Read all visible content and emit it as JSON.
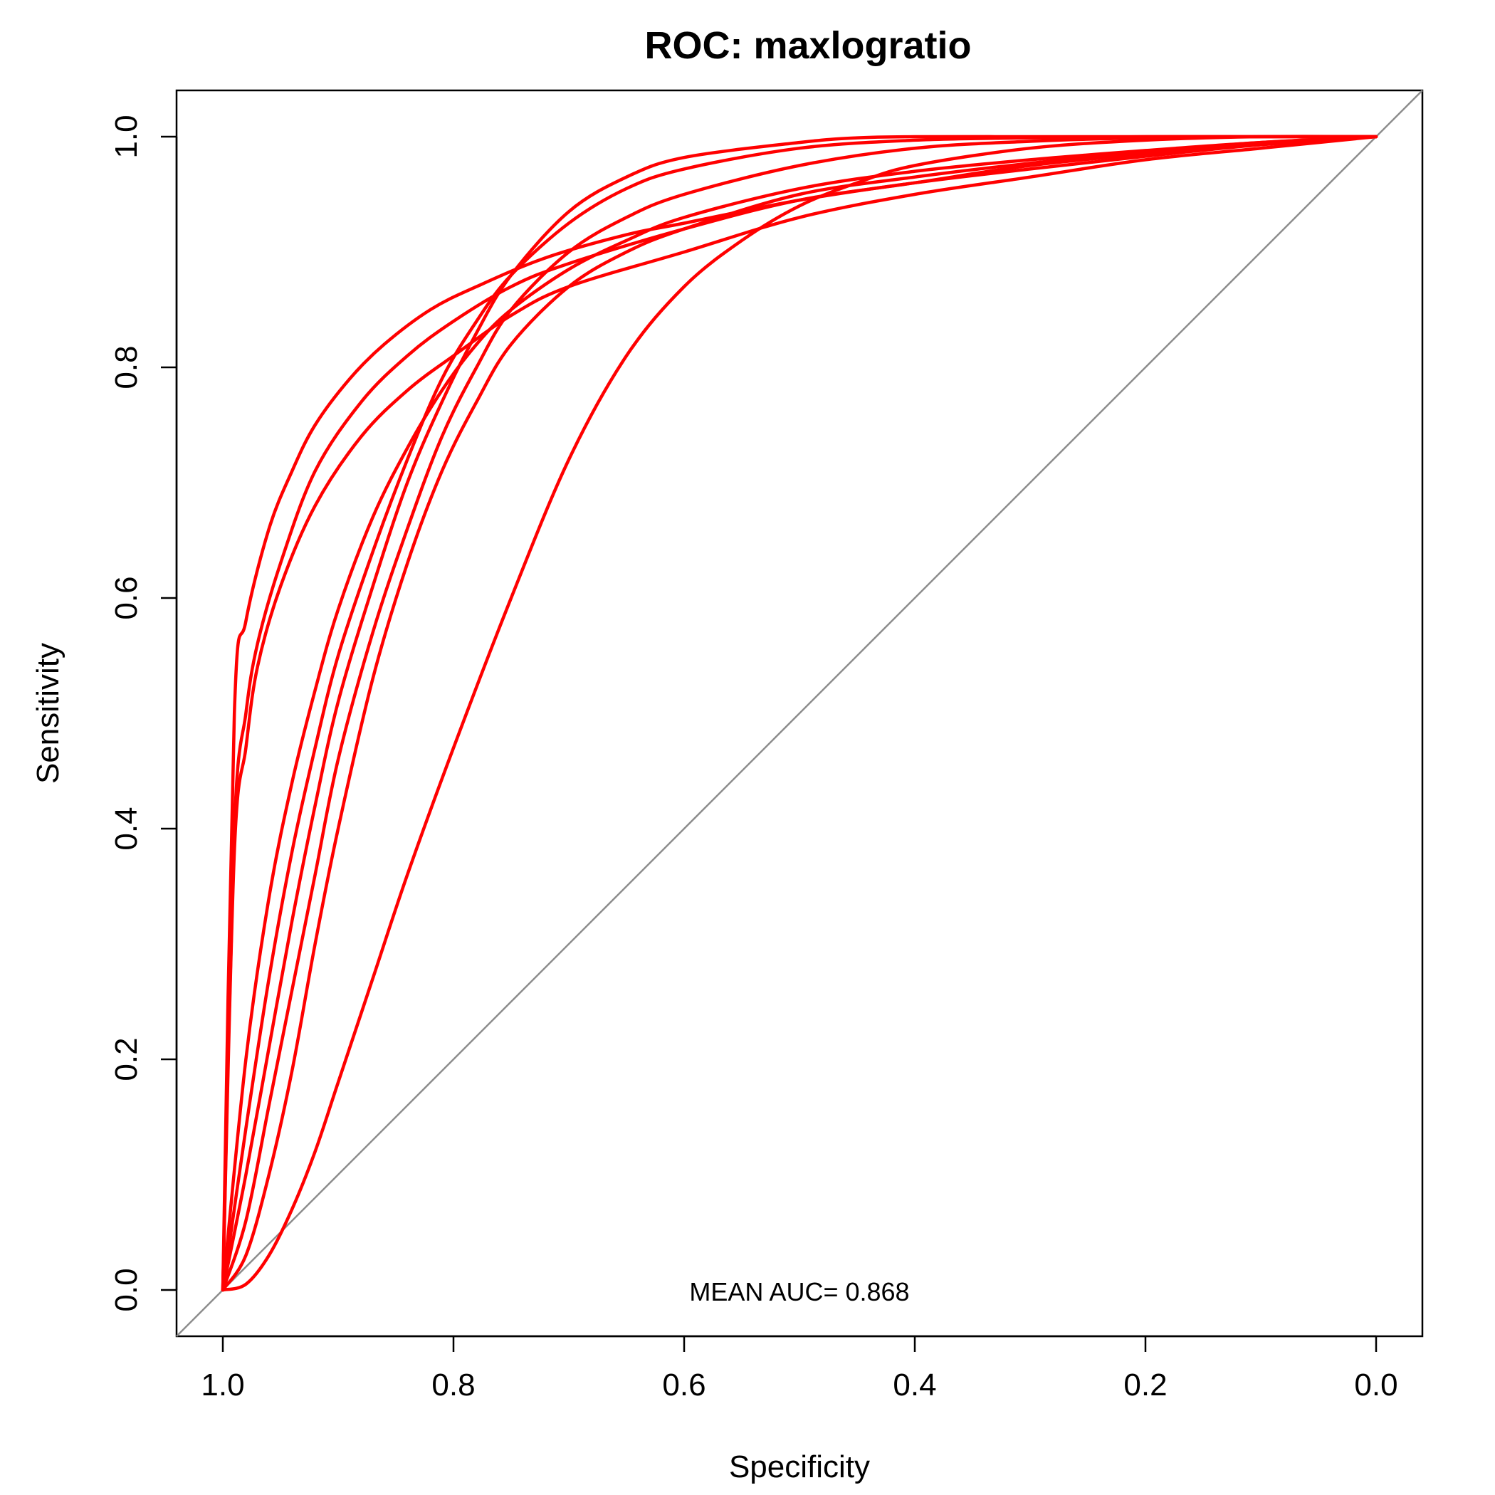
{
  "chart_data": {
    "type": "line",
    "title": "ROC: maxlogratio",
    "xlabel": "Specificity",
    "ylabel": "Sensitivity",
    "xlim": [
      1.0,
      0.0
    ],
    "ylim": [
      0.0,
      1.0
    ],
    "x_reversed": true,
    "x_ticks": [
      "1.0",
      "0.8",
      "0.6",
      "0.4",
      "0.2",
      "0.0"
    ],
    "y_ticks": [
      "0.0",
      "0.2",
      "0.4",
      "0.6",
      "0.8",
      "1.0"
    ],
    "annotation": "MEAN AUC= 0.868",
    "colors": {
      "curve": "#ff0000",
      "diagonal": "#8c8c8c"
    },
    "reference_line": {
      "x": [
        1.0,
        0.0
      ],
      "y": [
        0.0,
        1.0
      ]
    },
    "series": [
      {
        "x": [
          1.0,
          0.99,
          0.98,
          0.97,
          0.95,
          0.92,
          0.88,
          0.84,
          0.8,
          0.75,
          0.7,
          0.6,
          0.5,
          0.4,
          0.3,
          0.2,
          0.1,
          0.0
        ],
        "y": [
          0.0,
          0.4,
          0.5,
          0.56,
          0.63,
          0.71,
          0.77,
          0.81,
          0.84,
          0.87,
          0.89,
          0.92,
          0.945,
          0.96,
          0.975,
          0.985,
          0.993,
          1.0
        ]
      },
      {
        "x": [
          1.0,
          0.99,
          0.98,
          0.97,
          0.95,
          0.92,
          0.88,
          0.84,
          0.8,
          0.75,
          0.7,
          0.6,
          0.5,
          0.4,
          0.3,
          0.2,
          0.1,
          0.0
        ],
        "y": [
          0.0,
          0.38,
          0.47,
          0.54,
          0.61,
          0.68,
          0.74,
          0.78,
          0.81,
          0.845,
          0.87,
          0.9,
          0.93,
          0.95,
          0.965,
          0.98,
          0.99,
          1.0
        ]
      },
      {
        "x": [
          1.0,
          0.99,
          0.98,
          0.96,
          0.94,
          0.92,
          0.89,
          0.86,
          0.82,
          0.78,
          0.72,
          0.65,
          0.6,
          0.5,
          0.4,
          0.3,
          0.2,
          0.1,
          0.0
        ],
        "y": [
          0.0,
          0.5,
          0.58,
          0.66,
          0.71,
          0.75,
          0.79,
          0.82,
          0.85,
          0.87,
          0.895,
          0.915,
          0.925,
          0.945,
          0.96,
          0.972,
          0.983,
          0.993,
          1.0
        ]
      },
      {
        "x": [
          1.0,
          0.98,
          0.96,
          0.94,
          0.92,
          0.9,
          0.87,
          0.84,
          0.81,
          0.78,
          0.75,
          0.7,
          0.65,
          0.6,
          0.5,
          0.4,
          0.3,
          0.2,
          0.1,
          0.0
        ],
        "y": [
          0.0,
          0.2,
          0.34,
          0.44,
          0.52,
          0.59,
          0.67,
          0.73,
          0.78,
          0.82,
          0.85,
          0.885,
          0.91,
          0.93,
          0.955,
          0.97,
          0.98,
          0.988,
          0.995,
          1.0
        ]
      },
      {
        "x": [
          1.0,
          0.98,
          0.96,
          0.94,
          0.92,
          0.9,
          0.87,
          0.84,
          0.81,
          0.78,
          0.75,
          0.7,
          0.65,
          0.6,
          0.5,
          0.4,
          0.3,
          0.2,
          0.1,
          0.0
        ],
        "y": [
          0.0,
          0.14,
          0.27,
          0.38,
          0.47,
          0.55,
          0.64,
          0.72,
          0.79,
          0.84,
          0.88,
          0.925,
          0.955,
          0.972,
          0.99,
          0.997,
          0.999,
          1.0,
          1.0,
          1.0
        ]
      },
      {
        "x": [
          1.0,
          0.98,
          0.96,
          0.94,
          0.92,
          0.9,
          0.87,
          0.84,
          0.81,
          0.78,
          0.75,
          0.7,
          0.65,
          0.6,
          0.5,
          0.45,
          0.4,
          0.3,
          0.2,
          0.1,
          0.0
        ],
        "y": [
          0.0,
          0.1,
          0.21,
          0.32,
          0.42,
          0.51,
          0.61,
          0.7,
          0.77,
          0.83,
          0.88,
          0.935,
          0.965,
          0.982,
          0.995,
          0.999,
          1.0,
          1.0,
          1.0,
          1.0,
          1.0
        ]
      },
      {
        "x": [
          1.0,
          0.98,
          0.96,
          0.94,
          0.92,
          0.9,
          0.87,
          0.84,
          0.81,
          0.78,
          0.75,
          0.7,
          0.65,
          0.6,
          0.5,
          0.4,
          0.3,
          0.2,
          0.1,
          0.0
        ],
        "y": [
          0.0,
          0.06,
          0.16,
          0.26,
          0.36,
          0.46,
          0.57,
          0.66,
          0.74,
          0.8,
          0.85,
          0.9,
          0.93,
          0.95,
          0.975,
          0.99,
          0.996,
          0.999,
          1.0,
          1.0
        ]
      },
      {
        "x": [
          1.0,
          0.98,
          0.96,
          0.94,
          0.92,
          0.9,
          0.87,
          0.84,
          0.81,
          0.78,
          0.75,
          0.7,
          0.65,
          0.6,
          0.5,
          0.4,
          0.3,
          0.2,
          0.1,
          0.0
        ],
        "y": [
          0.0,
          0.03,
          0.1,
          0.19,
          0.3,
          0.4,
          0.53,
          0.63,
          0.71,
          0.77,
          0.82,
          0.87,
          0.9,
          0.92,
          0.95,
          0.965,
          0.977,
          0.987,
          0.995,
          1.0
        ]
      },
      {
        "x": [
          1.0,
          0.98,
          0.96,
          0.94,
          0.92,
          0.9,
          0.87,
          0.84,
          0.8,
          0.75,
          0.7,
          0.65,
          0.6,
          0.55,
          0.5,
          0.45,
          0.4,
          0.3,
          0.2,
          0.1,
          0.0
        ],
        "y": [
          0.0,
          0.005,
          0.03,
          0.07,
          0.12,
          0.18,
          0.27,
          0.36,
          0.47,
          0.6,
          0.72,
          0.81,
          0.87,
          0.91,
          0.94,
          0.96,
          0.975,
          0.99,
          0.997,
          1.0,
          1.0
        ]
      }
    ]
  }
}
